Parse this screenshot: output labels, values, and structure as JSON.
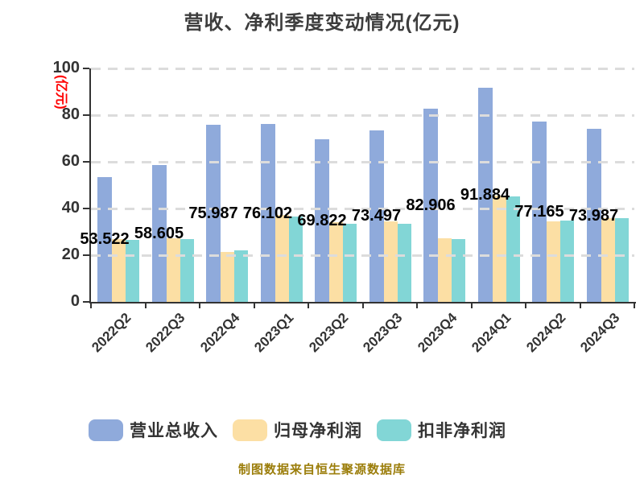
{
  "title": "营收、净利季度变动情况(亿元)",
  "y_axis": {
    "name": "(亿元)",
    "ticks": [
      0,
      20,
      40,
      60,
      80,
      100
    ],
    "max": 100
  },
  "chart_data": {
    "type": "bar",
    "title": "营收、净利季度变动情况(亿元)",
    "xlabel": "",
    "ylabel": "(亿元)",
    "ylim": [
      0,
      100
    ],
    "grid": "horizontal dashed",
    "legend_position": "bottom",
    "categories": [
      "2022Q2",
      "2022Q3",
      "2022Q4",
      "2023Q1",
      "2023Q2",
      "2023Q3",
      "2023Q4",
      "2024Q1",
      "2024Q2",
      "2024Q3"
    ],
    "series": [
      {
        "name": "营业总收入",
        "color": "#8FAADB",
        "values": [
          53.522,
          58.605,
          75.987,
          76.102,
          69.822,
          73.497,
          82.906,
          91.884,
          77.165,
          73.987
        ],
        "labels": [
          "53.522",
          "58.605",
          "75.987",
          "76.102",
          "69.822",
          "73.497",
          "82.906",
          "91.884",
          "77.165",
          "73.987"
        ]
      },
      {
        "name": "归母净利润",
        "color": "#FCDFA4",
        "values": [
          26.9,
          27.4,
          21.5,
          37.2,
          34.0,
          34.5,
          27.2,
          45.5,
          34.6,
          35.8
        ]
      },
      {
        "name": "扣非净利润",
        "color": "#82D6D6",
        "values": [
          26.6,
          26.9,
          22.0,
          36.4,
          33.4,
          33.5,
          26.9,
          45.2,
          34.9,
          36.0
        ]
      }
    ],
    "note": "Only 营业总收入 bars carry data labels; 归母净利润 and 扣非净利润 values are estimated from bar heights against gridlines."
  },
  "legend": {
    "items": [
      {
        "label": "营业总收入",
        "color": "#8FAADB"
      },
      {
        "label": "归母净利润",
        "color": "#FCDFA4"
      },
      {
        "label": "扣非净利润",
        "color": "#82D6D6"
      }
    ]
  },
  "footer": {
    "text": "制图数据来自恒生聚源数据库"
  },
  "colors": {
    "title_text": "#3D3D3D",
    "axis": "#333333",
    "tick_text": "#333333",
    "grid_line": "#DCDCDC",
    "data_label": "#000000",
    "y_axis_name": "#FF0000",
    "footer_text": "#9B7D0A"
  }
}
